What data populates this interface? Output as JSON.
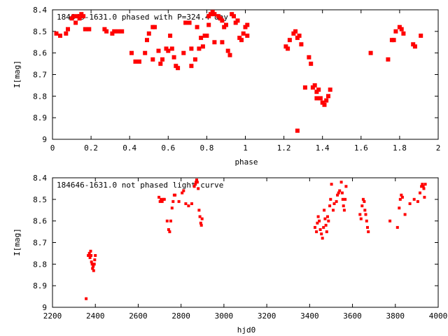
{
  "chart_data": [
    {
      "type": "scatter",
      "title": "184646-1631.0 phased with P=324.4 day",
      "xlabel": "phase",
      "ylabel": "I[mag]",
      "xlim": [
        0,
        2
      ],
      "ylim": [
        8.4,
        9.0
      ],
      "y_inverted": true,
      "x_ticks": [
        "0",
        "0.2",
        "0.4",
        "0.6",
        "0.8",
        "1",
        "1.2",
        "1.4",
        "1.6",
        "1.8",
        "2"
      ],
      "y_ticks": [
        "8.4",
        "8.5",
        "8.6",
        "8.7",
        "8.8",
        "8.9",
        "9"
      ],
      "grid": false,
      "marker_color": "#ff0000",
      "series": [
        {
          "points": [
            [
              0.02,
              8.51
            ],
            [
              0.04,
              8.52
            ],
            [
              0.07,
              8.51
            ],
            [
              0.08,
              8.49
            ],
            [
              0.1,
              8.44
            ],
            [
              0.11,
              8.43
            ],
            [
              0.12,
              8.46
            ],
            [
              0.13,
              8.43
            ],
            [
              0.14,
              8.44
            ],
            [
              0.15,
              8.42
            ],
            [
              0.16,
              8.43
            ],
            [
              0.17,
              8.49
            ],
            [
              0.19,
              8.49
            ],
            [
              0.27,
              8.49
            ],
            [
              0.28,
              8.5
            ],
            [
              0.31,
              8.51
            ],
            [
              0.32,
              8.5
            ],
            [
              0.34,
              8.5
            ],
            [
              0.36,
              8.5
            ],
            [
              0.41,
              8.6
            ],
            [
              0.43,
              8.64
            ],
            [
              0.45,
              8.64
            ],
            [
              0.48,
              8.6
            ],
            [
              0.49,
              8.54
            ],
            [
              0.5,
              8.51
            ],
            [
              0.52,
              8.48
            ],
            [
              0.53,
              8.48
            ],
            [
              0.52,
              8.63
            ],
            [
              0.55,
              8.59
            ],
            [
              0.56,
              8.65
            ],
            [
              0.57,
              8.63
            ],
            [
              0.59,
              8.58
            ],
            [
              0.6,
              8.59
            ],
            [
              0.61,
              8.52
            ],
            [
              0.62,
              8.58
            ],
            [
              0.63,
              8.62
            ],
            [
              0.64,
              8.66
            ],
            [
              0.65,
              8.67
            ],
            [
              0.68,
              8.6
            ],
            [
              0.69,
              8.46
            ],
            [
              0.71,
              8.46
            ],
            [
              0.72,
              8.58
            ],
            [
              0.72,
              8.66
            ],
            [
              0.74,
              8.63
            ],
            [
              0.75,
              8.48
            ],
            [
              0.76,
              8.58
            ],
            [
              0.77,
              8.53
            ],
            [
              0.78,
              8.57
            ],
            [
              0.79,
              8.52
            ],
            [
              0.8,
              8.52
            ],
            [
              0.81,
              8.47
            ],
            [
              0.81,
              8.43
            ],
            [
              0.82,
              8.42
            ],
            [
              0.83,
              8.41
            ],
            [
              0.84,
              8.42
            ],
            [
              0.84,
              8.55
            ],
            [
              0.86,
              8.43
            ],
            [
              0.87,
              8.44
            ],
            [
              0.88,
              8.45
            ],
            [
              0.88,
              8.55
            ],
            [
              0.89,
              8.48
            ],
            [
              0.9,
              8.47
            ],
            [
              0.91,
              8.59
            ],
            [
              0.92,
              8.61
            ],
            [
              0.93,
              8.42
            ],
            [
              0.94,
              8.43
            ],
            [
              0.95,
              8.46
            ],
            [
              0.96,
              8.45
            ],
            [
              0.97,
              8.53
            ],
            [
              0.98,
              8.54
            ],
            [
              0.99,
              8.51
            ],
            [
              1.0,
              8.48
            ],
            [
              1.01,
              8.52
            ],
            [
              1.01,
              8.47
            ],
            [
              1.21,
              8.57
            ],
            [
              1.22,
              8.58
            ],
            [
              1.23,
              8.54
            ],
            [
              1.25,
              8.51
            ],
            [
              1.26,
              8.5
            ],
            [
              1.27,
              8.53
            ],
            [
              1.28,
              8.52
            ],
            [
              1.27,
              8.96
            ],
            [
              1.29,
              8.56
            ],
            [
              1.31,
              8.76
            ],
            [
              1.33,
              8.62
            ],
            [
              1.34,
              8.65
            ],
            [
              1.35,
              8.76
            ],
            [
              1.36,
              8.75
            ],
            [
              1.37,
              8.78
            ],
            [
              1.37,
              8.81
            ],
            [
              1.38,
              8.77
            ],
            [
              1.39,
              8.81
            ],
            [
              1.4,
              8.83
            ],
            [
              1.41,
              8.84
            ],
            [
              1.42,
              8.82
            ],
            [
              1.43,
              8.8
            ],
            [
              1.44,
              8.77
            ],
            [
              1.65,
              8.6
            ],
            [
              1.74,
              8.63
            ],
            [
              1.76,
              8.54
            ],
            [
              1.77,
              8.54
            ],
            [
              1.78,
              8.5
            ],
            [
              1.8,
              8.48
            ],
            [
              1.81,
              8.49
            ],
            [
              1.82,
              8.51
            ],
            [
              1.87,
              8.56
            ],
            [
              1.88,
              8.57
            ],
            [
              1.91,
              8.52
            ]
          ]
        }
      ]
    },
    {
      "type": "scatter",
      "title": "184646-1631.0 not phased light curve",
      "xlabel": "hjd0",
      "ylabel": "I[mag]",
      "xlim": [
        2200,
        4000
      ],
      "ylim": [
        8.4,
        9.0
      ],
      "y_inverted": true,
      "x_ticks": [
        "2200",
        "2400",
        "2600",
        "2800",
        "3000",
        "3200",
        "3400",
        "3600",
        "3800",
        "4000"
      ],
      "y_ticks": [
        "8.4",
        "8.5",
        "8.6",
        "8.7",
        "8.8",
        "8.9",
        "9"
      ],
      "grid": false,
      "marker_color": "#ff0000",
      "series": [
        {
          "points": [
            [
              2357,
              8.96
            ],
            [
              2367,
              8.76
            ],
            [
              2372,
              8.75
            ],
            [
              2375,
              8.77
            ],
            [
              2378,
              8.74
            ],
            [
              2380,
              8.76
            ],
            [
              2382,
              8.79
            ],
            [
              2385,
              8.8
            ],
            [
              2387,
              8.82
            ],
            [
              2390,
              8.81
            ],
            [
              2392,
              8.83
            ],
            [
              2395,
              8.8
            ],
            [
              2397,
              8.78
            ],
            [
              2400,
              8.76
            ],
            [
              2697,
              8.49
            ],
            [
              2702,
              8.51
            ],
            [
              2707,
              8.5
            ],
            [
              2712,
              8.51
            ],
            [
              2717,
              8.5
            ],
            [
              2722,
              8.5
            ],
            [
              2735,
              8.6
            ],
            [
              2742,
              8.64
            ],
            [
              2747,
              8.65
            ],
            [
              2752,
              8.6
            ],
            [
              2758,
              8.54
            ],
            [
              2763,
              8.51
            ],
            [
              2768,
              8.48
            ],
            [
              2772,
              8.48
            ],
            [
              2790,
              8.51
            ],
            [
              2805,
              8.47
            ],
            [
              2812,
              8.46
            ],
            [
              2822,
              8.52
            ],
            [
              2835,
              8.53
            ],
            [
              2850,
              8.52
            ],
            [
              2862,
              8.44
            ],
            [
              2867,
              8.43
            ],
            [
              2870,
              8.42
            ],
            [
              2873,
              8.41
            ],
            [
              2876,
              8.42
            ],
            [
              2880,
              8.45
            ],
            [
              2884,
              8.55
            ],
            [
              2888,
              8.58
            ],
            [
              2892,
              8.61
            ],
            [
              2895,
              8.62
            ],
            [
              2898,
              8.59
            ],
            [
              3425,
              8.63
            ],
            [
              3432,
              8.65
            ],
            [
              3436,
              8.61
            ],
            [
              3440,
              8.58
            ],
            [
              3445,
              8.6
            ],
            [
              3450,
              8.64
            ],
            [
              3455,
              8.66
            ],
            [
              3460,
              8.68
            ],
            [
              3465,
              8.63
            ],
            [
              3468,
              8.55
            ],
            [
              3472,
              8.59
            ],
            [
              3476,
              8.62
            ],
            [
              3480,
              8.65
            ],
            [
              3484,
              8.58
            ],
            [
              3488,
              8.6
            ],
            [
              3494,
              8.53
            ],
            [
              3498,
              8.5
            ],
            [
              3502,
              8.43
            ],
            [
              3510,
              8.55
            ],
            [
              3515,
              8.52
            ],
            [
              3525,
              8.51
            ],
            [
              3530,
              8.48
            ],
            [
              3535,
              8.47
            ],
            [
              3540,
              8.46
            ],
            [
              3548,
              8.42
            ],
            [
              3552,
              8.47
            ],
            [
              3555,
              8.5
            ],
            [
              3558,
              8.53
            ],
            [
              3562,
              8.55
            ],
            [
              3566,
              8.5
            ],
            [
              3570,
              8.44
            ],
            [
              3635,
              8.57
            ],
            [
              3640,
              8.59
            ],
            [
              3645,
              8.53
            ],
            [
              3650,
              8.5
            ],
            [
              3655,
              8.51
            ],
            [
              3658,
              8.55
            ],
            [
              3662,
              8.57
            ],
            [
              3666,
              8.6
            ],
            [
              3670,
              8.63
            ],
            [
              3674,
              8.65
            ],
            [
              3775,
              8.6
            ],
            [
              3810,
              8.63
            ],
            [
              3818,
              8.54
            ],
            [
              3823,
              8.5
            ],
            [
              3828,
              8.48
            ],
            [
              3833,
              8.49
            ],
            [
              3845,
              8.57
            ],
            [
              3868,
              8.52
            ],
            [
              3888,
              8.5
            ],
            [
              3905,
              8.51
            ],
            [
              3915,
              8.47
            ],
            [
              3922,
              8.44
            ],
            [
              3926,
              8.43
            ],
            [
              3930,
              8.44
            ],
            [
              3933,
              8.45
            ],
            [
              3936,
              8.49
            ],
            [
              3940,
              8.43
            ]
          ]
        }
      ]
    }
  ]
}
